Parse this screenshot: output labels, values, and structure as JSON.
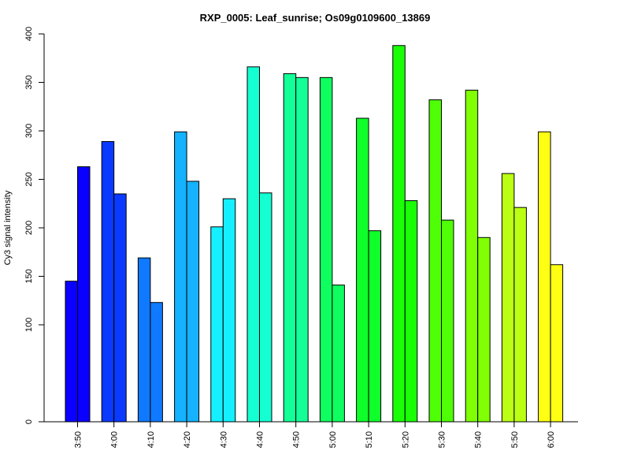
{
  "chart_data": {
    "type": "bar",
    "title": "RXP_0005: Leaf_sunrise; Os09g0109600_13869",
    "ylabel": "Cy3 signal intensity",
    "xlabel": "",
    "categories": [
      "3:50",
      "4:00",
      "4:10",
      "4:20",
      "4:30",
      "4:40",
      "4:50",
      "5:00",
      "5:10",
      "5:20",
      "5:30",
      "5:40",
      "5:50",
      "6:00"
    ],
    "yticks": [
      0,
      100,
      150,
      200,
      250,
      300,
      350,
      400
    ],
    "ylim": [
      0,
      400
    ],
    "bars_per_category": 2,
    "series": [
      {
        "values": [
          145,
          289,
          169,
          299,
          201,
          366,
          359,
          355,
          313,
          388,
          332,
          342,
          256,
          299
        ]
      },
      {
        "values": [
          263,
          235,
          123,
          248,
          230,
          236,
          355,
          141,
          197,
          228,
          208,
          190,
          221,
          162
        ]
      }
    ],
    "colors": [
      "#0A00FF",
      "#0A3AFF",
      "#0F7AFF",
      "#14B2FF",
      "#14F0FF",
      "#14FFD2",
      "#14FF98",
      "#0FFF60",
      "#0FFF2A",
      "#1AFF05",
      "#4EFF05",
      "#80FF05",
      "#BBFF14",
      "#FFFF14"
    ],
    "grid": false,
    "legend": "none"
  }
}
